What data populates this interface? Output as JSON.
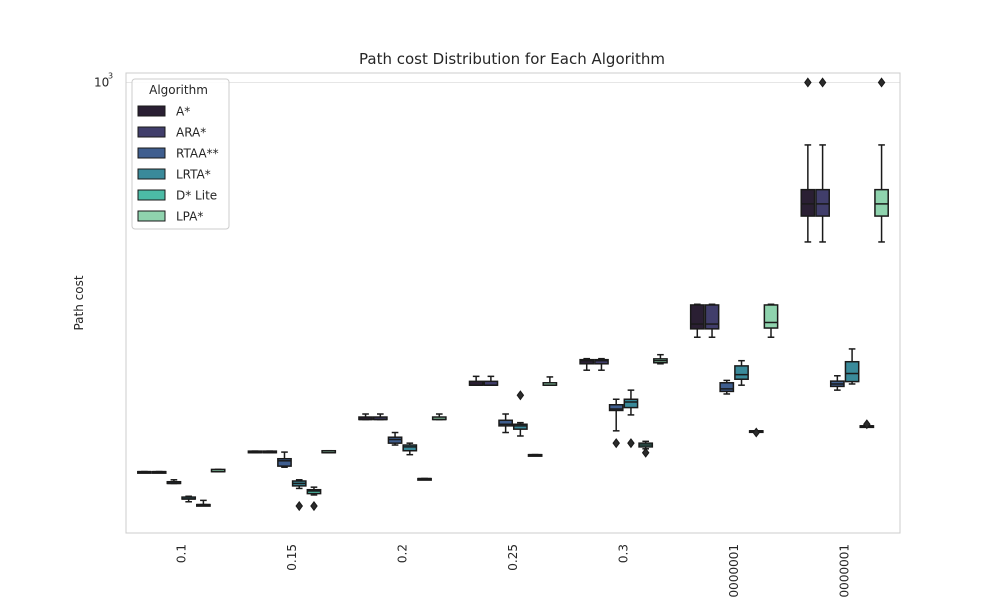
{
  "chart_data": {
    "type": "box",
    "title": "Path cost Distribution for Each Algorithm",
    "xlabel": "",
    "ylabel": "Path cost",
    "y_scale": "log",
    "ylim": [
      40,
      1070
    ],
    "y_tick_label_base": "10",
    "y_tick_label_exponent": "3",
    "grid": "horizontal",
    "categories": [
      "0.1",
      "0.15",
      "0.2",
      "0.25",
      "0.3",
      "0000001",
      "0000001"
    ],
    "legend": {
      "title": "Algorithm",
      "placement": "top-left"
    },
    "series": [
      {
        "name": "A*",
        "color": "#2a1f33",
        "boxes": [
          {
            "whislo": 62,
            "q1": 62,
            "med": 62,
            "q3": 62,
            "whishi": 62,
            "fliers": []
          },
          {
            "whislo": 71,
            "q1": 71,
            "med": 71,
            "q3": 71.8,
            "whishi": 71.8,
            "fliers": []
          },
          {
            "whislo": 90,
            "q1": 90,
            "med": 90,
            "q3": 91.6,
            "whishi": 93.6,
            "fliers": []
          },
          {
            "whislo": 115,
            "q1": 115,
            "med": 115,
            "q3": 118.2,
            "whishi": 122.5,
            "fliers": []
          },
          {
            "whislo": 128,
            "q1": 134,
            "med": 137,
            "q3": 138,
            "whishi": 139,
            "fliers": []
          },
          {
            "whislo": 162,
            "q1": 172,
            "med": 178,
            "q3": 204,
            "whishi": 205,
            "fliers": []
          },
          {
            "whislo": 320,
            "q1": 385,
            "med": 420,
            "q3": 465,
            "whishi": 640,
            "fliers": [
              1000
            ]
          }
        ]
      },
      {
        "name": "ARA*",
        "color": "#413e6b",
        "boxes": [
          {
            "whislo": 62,
            "q1": 62,
            "med": 62,
            "q3": 62,
            "whishi": 62,
            "fliers": []
          },
          {
            "whislo": 71,
            "q1": 71,
            "med": 71,
            "q3": 71.8,
            "whishi": 71.8,
            "fliers": []
          },
          {
            "whislo": 90,
            "q1": 90,
            "med": 90,
            "q3": 91.6,
            "whishi": 93.6,
            "fliers": []
          },
          {
            "whislo": 115,
            "q1": 115,
            "med": 115,
            "q3": 118.2,
            "whishi": 122.5,
            "fliers": []
          },
          {
            "whislo": 128,
            "q1": 134,
            "med": 137,
            "q3": 138,
            "whishi": 139,
            "fliers": []
          },
          {
            "whislo": 162,
            "q1": 172,
            "med": 178,
            "q3": 204,
            "whishi": 205,
            "fliers": []
          },
          {
            "whislo": 320,
            "q1": 385,
            "med": 420,
            "q3": 465,
            "whishi": 640,
            "fliers": [
              1000
            ]
          }
        ]
      },
      {
        "name": "RTAA**",
        "color": "#3f5e8f",
        "boxes": [
          {
            "whislo": 57,
            "q1": 57,
            "med": 57,
            "q3": 57.7,
            "whishi": 58.5,
            "fliers": []
          },
          {
            "whislo": 64,
            "q1": 64.5,
            "med": 67,
            "q3": 68,
            "whishi": 71.3,
            "fliers": []
          },
          {
            "whislo": 75,
            "q1": 76,
            "med": 78,
            "q3": 79.3,
            "whishi": 82,
            "fliers": []
          },
          {
            "whislo": 82,
            "q1": 86,
            "med": 87,
            "q3": 89.5,
            "whishi": 93.6,
            "fliers": []
          },
          {
            "whislo": 83,
            "q1": 96,
            "med": 97,
            "q3": 100,
            "whishi": 104,
            "fliers": [
              76
            ]
          },
          {
            "whislo": 108,
            "q1": 110,
            "med": 112,
            "q3": 117,
            "whishi": 119,
            "fliers": []
          },
          {
            "whislo": 111,
            "q1": 114,
            "med": 116,
            "q3": 118.4,
            "whishi": 123,
            "fliers": []
          }
        ]
      },
      {
        "name": "LRTA*",
        "color": "#3a8a9a",
        "boxes": [
          {
            "whislo": 50,
            "q1": 51,
            "med": 51,
            "q3": 51.7,
            "whishi": 52,
            "fliers": []
          },
          {
            "whislo": 55,
            "q1": 56,
            "med": 57,
            "q3": 58,
            "whishi": 58.5,
            "fliers": [
              48.5
            ]
          },
          {
            "whislo": 70,
            "q1": 72,
            "med": 74,
            "q3": 75,
            "whishi": 76,
            "fliers": []
          },
          {
            "whislo": 80,
            "q1": 84,
            "med": 86,
            "q3": 87,
            "whishi": 88,
            "fliers": [
              107
            ]
          },
          {
            "whislo": 93,
            "q1": 98,
            "med": 102,
            "q3": 104,
            "whishi": 111,
            "fliers": [
              76
            ]
          },
          {
            "whislo": 115,
            "q1": 120,
            "med": 124,
            "q3": 132,
            "whishi": 137,
            "fliers": []
          },
          {
            "whislo": 116,
            "q1": 118,
            "med": 125,
            "q3": 136,
            "whishi": 149,
            "fliers": []
          }
        ]
      },
      {
        "name": "D* Lite",
        "color": "#4cbba6",
        "boxes": [
          {
            "whislo": 49,
            "q1": 49,
            "med": 49,
            "q3": 49,
            "whishi": 50.5,
            "fliers": []
          },
          {
            "whislo": 52.5,
            "q1": 53,
            "med": 54,
            "q3": 54.5,
            "whishi": 55.5,
            "fliers": [
              48.5
            ]
          },
          {
            "whislo": 59,
            "q1": 59,
            "med": 59,
            "q3": 59,
            "whishi": 59,
            "fliers": []
          },
          {
            "whislo": 70,
            "q1": 70,
            "med": 70,
            "q3": 70,
            "whishi": 70,
            "fliers": []
          },
          {
            "whislo": 73,
            "q1": 74,
            "med": 75,
            "q3": 76,
            "whishi": 77,
            "fliers": [
              71
            ]
          },
          {
            "whislo": 83,
            "q1": 83,
            "med": 83,
            "q3": 83,
            "whishi": 83,
            "fliers": [
              82
            ]
          },
          {
            "whislo": 86,
            "q1": 86,
            "med": 86,
            "q3": 86,
            "whishi": 86,
            "fliers": [
              87
            ]
          }
        ]
      },
      {
        "name": "LPA*",
        "color": "#8fd3ae",
        "boxes": [
          {
            "whislo": 62,
            "q1": 62,
            "med": 62,
            "q3": 63,
            "whishi": 63,
            "fliers": []
          },
          {
            "whislo": 71,
            "q1": 71,
            "med": 71,
            "q3": 72,
            "whishi": 72,
            "fliers": []
          },
          {
            "whislo": 90,
            "q1": 90,
            "med": 90,
            "q3": 91.6,
            "whishi": 93.6,
            "fliers": []
          },
          {
            "whislo": 115,
            "q1": 115,
            "med": 115,
            "q3": 117,
            "whishi": 122,
            "fliers": []
          },
          {
            "whislo": 134,
            "q1": 135,
            "med": 137,
            "q3": 138.8,
            "whishi": 143,
            "fliers": []
          },
          {
            "whislo": 162,
            "q1": 173,
            "med": 180,
            "q3": 204,
            "whishi": 205,
            "fliers": []
          },
          {
            "whislo": 320,
            "q1": 385,
            "med": 420,
            "q3": 465,
            "whishi": 640,
            "fliers": [
              1000
            ]
          }
        ]
      }
    ]
  }
}
